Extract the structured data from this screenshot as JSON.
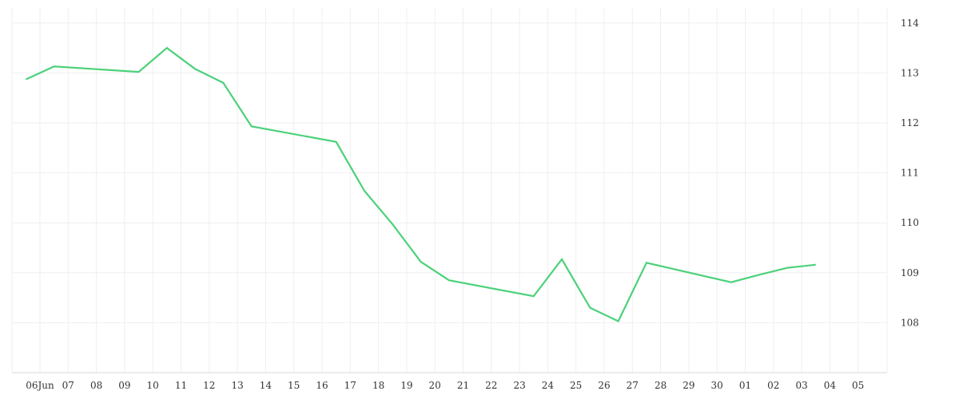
{
  "chart_data": {
    "type": "line",
    "title": "",
    "xlabel": "",
    "ylabel": "",
    "x_tick_labels": [
      "06Jun",
      "07",
      "08",
      "09",
      "10",
      "11",
      "12",
      "13",
      "14",
      "15",
      "16",
      "17",
      "18",
      "19",
      "20",
      "21",
      "22",
      "23",
      "24",
      "25",
      "26",
      "27",
      "28",
      "29",
      "30",
      "01",
      "02",
      "03",
      "04",
      "05"
    ],
    "ylim": [
      107,
      114.3
    ],
    "y_ticks": [
      108,
      109,
      110,
      111,
      112,
      113,
      114
    ],
    "y_axis_side": "right",
    "grid": true,
    "series": [
      {
        "color": "#4cd17a",
        "points": [
          {
            "x": "06Jun",
            "y": 112.87
          },
          {
            "x": "07",
            "y": 113.13
          },
          {
            "x": "10",
            "y": 113.02
          },
          {
            "x": "11",
            "y": 113.5
          },
          {
            "x": "12",
            "y": 113.08
          },
          {
            "x": "13",
            "y": 112.8
          },
          {
            "x": "14",
            "y": 111.93
          },
          {
            "x": "17",
            "y": 111.62
          },
          {
            "x": "18",
            "y": 110.64
          },
          {
            "x": "19",
            "y": 109.97
          },
          {
            "x": "20",
            "y": 109.22
          },
          {
            "x": "21",
            "y": 108.85
          },
          {
            "x": "24",
            "y": 108.53
          },
          {
            "x": "25",
            "y": 109.27
          },
          {
            "x": "26",
            "y": 108.3
          },
          {
            "x": "27",
            "y": 108.03
          },
          {
            "x": "28",
            "y": 109.2
          },
          {
            "x": "01",
            "y": 108.81
          },
          {
            "x": "02",
            "y": 108.96
          },
          {
            "x": "03",
            "y": 109.1
          },
          {
            "x": "04",
            "y": 109.16
          }
        ]
      }
    ]
  }
}
